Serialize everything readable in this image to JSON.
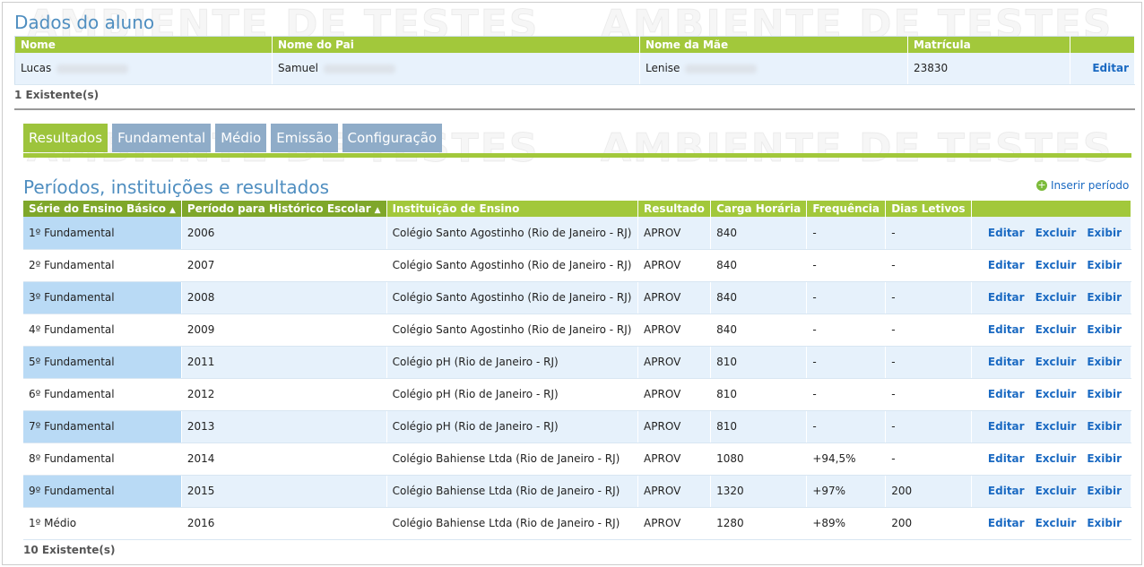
{
  "watermark": "AMBIENTE DE TESTES",
  "student": {
    "title": "Dados do aluno",
    "columns": [
      "Nome",
      "Nome do Pai",
      "Nome da Mãe",
      "Matrícula"
    ],
    "row": [
      "Lucas",
      "Samuel",
      "Lenise",
      "23830"
    ],
    "action": "Editar",
    "count": "1 Existente(s)"
  },
  "tabs": [
    "Resultados",
    "Fundamental",
    "Médio",
    "Emissão",
    "Configuração"
  ],
  "periods": {
    "title": "Períodos, instituições e resultados",
    "insert": "Inserir período",
    "columns": [
      "Série do Ensino Básico",
      "Período para Histórico Escolar",
      "Instituição de Ensino",
      "Resultado",
      "Carga Horária",
      "Frequência",
      "Dias Letivos"
    ],
    "rows": [
      [
        "1º Fundamental",
        "2006",
        "Colégio Santo Agostinho (Rio de Janeiro - RJ)",
        "APROV",
        "840",
        "-",
        "-"
      ],
      [
        "2º Fundamental",
        "2007",
        "Colégio Santo Agostinho (Rio de Janeiro - RJ)",
        "APROV",
        "840",
        "-",
        "-"
      ],
      [
        "3º Fundamental",
        "2008",
        "Colégio Santo Agostinho (Rio de Janeiro - RJ)",
        "APROV",
        "840",
        "-",
        "-"
      ],
      [
        "4º Fundamental",
        "2009",
        "Colégio Santo Agostinho (Rio de Janeiro - RJ)",
        "APROV",
        "840",
        "-",
        "-"
      ],
      [
        "5º Fundamental",
        "2011",
        "Colégio pH (Rio de Janeiro - RJ)",
        "APROV",
        "810",
        "-",
        "-"
      ],
      [
        "6º Fundamental",
        "2012",
        "Colégio pH (Rio de Janeiro - RJ)",
        "APROV",
        "810",
        "-",
        "-"
      ],
      [
        "7º Fundamental",
        "2013",
        "Colégio pH (Rio de Janeiro - RJ)",
        "APROV",
        "810",
        "-",
        "-"
      ],
      [
        "8º Fundamental",
        "2014",
        "Colégio Bahiense Ltda (Rio de Janeiro - RJ)",
        "APROV",
        "1080",
        "+94,5%",
        "-"
      ],
      [
        "9º Fundamental",
        "2015",
        "Colégio Bahiense Ltda (Rio de Janeiro - RJ)",
        "APROV",
        "1320",
        "+97%",
        "200"
      ],
      [
        "1º Médio",
        "2016",
        "Colégio Bahiense Ltda (Rio de Janeiro - RJ)",
        "APROV",
        "1280",
        "+89%",
        "200"
      ]
    ],
    "actions": [
      "Editar",
      "Excluir",
      "Exibir"
    ],
    "count": "10 Existente(s)"
  }
}
